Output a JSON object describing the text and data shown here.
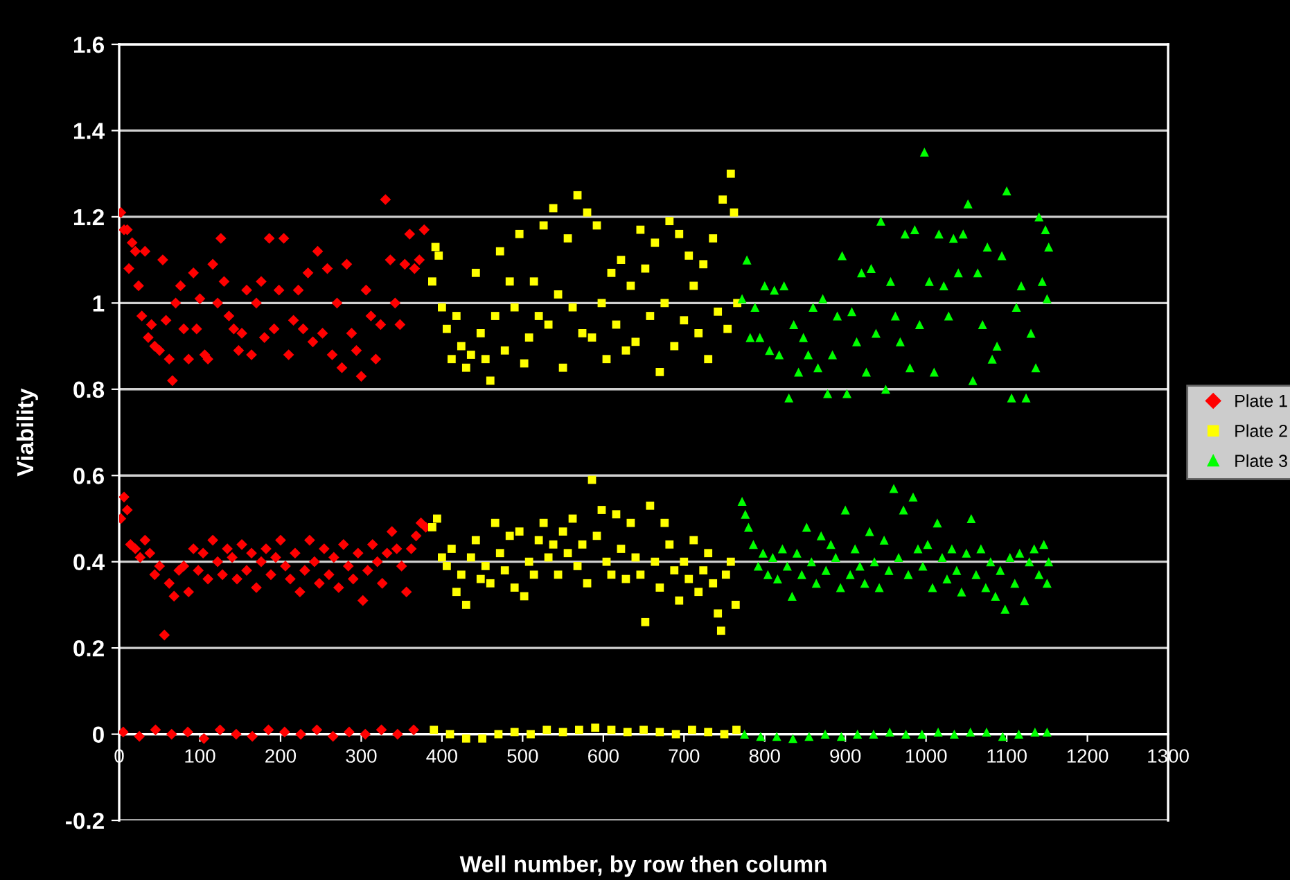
{
  "chart_data": {
    "type": "scatter",
    "xlabel": "Well number, by row then column",
    "ylabel": "Viability",
    "xlim": [
      0,
      1300
    ],
    "xticks": [
      0,
      100,
      200,
      300,
      400,
      500,
      600,
      700,
      800,
      900,
      1000,
      1100,
      1200,
      1300
    ],
    "ylim": [
      -0.2,
      1.6
    ],
    "yticks": [
      -0.2,
      0,
      0.2,
      0.4,
      0.6,
      0.8,
      1,
      1.2,
      1.4,
      1.6
    ],
    "grid": "y",
    "legend": "right",
    "series": [
      {
        "name": "Plate 1",
        "color": "#ff0000",
        "marker": "diamond",
        "x": [
          2,
          6,
          10,
          12,
          16,
          20,
          24,
          28,
          32,
          36,
          40,
          44,
          50,
          54,
          58,
          62,
          66,
          70,
          76,
          80,
          86,
          92,
          96,
          100,
          106,
          110,
          116,
          122,
          126,
          130,
          136,
          142,
          148,
          152,
          158,
          164,
          170,
          176,
          180,
          186,
          192,
          198,
          204,
          210,
          216,
          222,
          228,
          234,
          240,
          246,
          252,
          258,
          264,
          270,
          276,
          282,
          288,
          294,
          300,
          306,
          312,
          318,
          324,
          330,
          336,
          342,
          348,
          354,
          360,
          366,
          372,
          378,
          2,
          6,
          10,
          14,
          20,
          26,
          32,
          38,
          44,
          50,
          56,
          62,
          68,
          74,
          80,
          86,
          92,
          98,
          104,
          110,
          116,
          122,
          128,
          134,
          140,
          146,
          152,
          158,
          164,
          170,
          176,
          182,
          188,
          194,
          200,
          206,
          212,
          218,
          224,
          230,
          236,
          242,
          248,
          254,
          260,
          266,
          272,
          278,
          284,
          290,
          296,
          302,
          308,
          314,
          320,
          326,
          332,
          338,
          344,
          350,
          356,
          362,
          368,
          374,
          380,
          5,
          25,
          45,
          65,
          85,
          105,
          125,
          145,
          165,
          185,
          205,
          225,
          245,
          265,
          285,
          305,
          325,
          345,
          365
        ],
        "values": [
          1.21,
          1.17,
          1.17,
          1.08,
          1.14,
          1.12,
          1.04,
          0.97,
          1.12,
          0.92,
          0.95,
          0.9,
          0.89,
          1.1,
          0.96,
          0.87,
          0.82,
          1.0,
          1.04,
          0.94,
          0.87,
          1.07,
          0.94,
          1.01,
          0.88,
          0.87,
          1.09,
          1.0,
          1.15,
          1.05,
          0.97,
          0.94,
          0.89,
          0.93,
          1.03,
          0.88,
          1.0,
          1.05,
          0.92,
          1.15,
          0.94,
          1.03,
          1.15,
          0.88,
          0.96,
          1.03,
          0.94,
          1.07,
          0.91,
          1.12,
          0.93,
          1.08,
          0.88,
          1.0,
          0.85,
          1.09,
          0.93,
          0.89,
          0.83,
          1.03,
          0.97,
          0.87,
          0.95,
          1.24,
          1.1,
          1.0,
          0.95,
          1.09,
          1.16,
          1.08,
          1.1,
          1.17,
          0.5,
          0.55,
          0.52,
          0.44,
          0.43,
          0.41,
          0.45,
          0.42,
          0.37,
          0.39,
          0.23,
          0.35,
          0.32,
          0.38,
          0.39,
          0.33,
          0.43,
          0.38,
          0.42,
          0.36,
          0.45,
          0.4,
          0.37,
          0.43,
          0.41,
          0.36,
          0.44,
          0.38,
          0.42,
          0.34,
          0.4,
          0.43,
          0.37,
          0.41,
          0.45,
          0.39,
          0.36,
          0.42,
          0.33,
          0.38,
          0.45,
          0.4,
          0.35,
          0.43,
          0.37,
          0.41,
          0.34,
          0.44,
          0.39,
          0.36,
          0.42,
          0.31,
          0.38,
          0.44,
          0.4,
          0.35,
          0.42,
          0.47,
          0.43,
          0.39,
          0.33,
          0.43,
          0.46,
          0.49,
          0.48,
          0.005,
          -0.005,
          0.01,
          0,
          0.005,
          -0.01,
          0.01,
          0,
          -0.005,
          0.01,
          0.005,
          0,
          0.01,
          -0.005,
          0.005,
          0,
          0.01,
          0,
          0.01
        ]
      },
      {
        "name": "Plate 2",
        "color": "#ffff00",
        "marker": "square",
        "x": [
          388,
          392,
          396,
          400,
          406,
          412,
          418,
          424,
          430,
          436,
          442,
          448,
          454,
          460,
          466,
          472,
          478,
          484,
          490,
          496,
          502,
          508,
          514,
          520,
          526,
          532,
          538,
          544,
          550,
          556,
          562,
          568,
          574,
          580,
          586,
          592,
          598,
          604,
          610,
          616,
          622,
          628,
          634,
          640,
          646,
          652,
          658,
          664,
          670,
          676,
          682,
          688,
          694,
          700,
          706,
          712,
          718,
          724,
          730,
          736,
          742,
          748,
          754,
          758,
          762,
          766,
          388,
          394,
          400,
          406,
          412,
          418,
          424,
          430,
          436,
          442,
          448,
          454,
          460,
          466,
          472,
          478,
          484,
          490,
          496,
          502,
          508,
          514,
          520,
          526,
          532,
          538,
          544,
          550,
          556,
          562,
          568,
          574,
          580,
          586,
          592,
          598,
          604,
          610,
          616,
          622,
          628,
          634,
          640,
          646,
          652,
          658,
          664,
          670,
          676,
          682,
          688,
          694,
          700,
          706,
          712,
          718,
          724,
          730,
          736,
          742,
          746,
          752,
          758,
          764,
          390,
          410,
          430,
          450,
          470,
          490,
          510,
          530,
          550,
          570,
          590,
          610,
          630,
          650,
          670,
          690,
          710,
          730,
          750,
          765
        ],
        "values": [
          1.05,
          1.13,
          1.11,
          0.99,
          0.94,
          0.87,
          0.97,
          0.9,
          0.85,
          0.88,
          1.07,
          0.93,
          0.87,
          0.82,
          0.97,
          1.12,
          0.89,
          1.05,
          0.99,
          1.16,
          0.86,
          0.92,
          1.05,
          0.97,
          1.18,
          0.95,
          1.22,
          1.02,
          0.85,
          1.15,
          0.99,
          1.25,
          0.93,
          1.21,
          0.92,
          1.18,
          1.0,
          0.87,
          1.07,
          0.95,
          1.1,
          0.89,
          1.04,
          0.91,
          1.17,
          1.08,
          0.97,
          1.14,
          0.84,
          1.0,
          1.19,
          0.9,
          1.16,
          0.96,
          1.11,
          1.04,
          0.93,
          1.09,
          0.87,
          1.15,
          0.98,
          1.24,
          0.94,
          1.3,
          1.21,
          1.0,
          0.48,
          0.5,
          0.41,
          0.39,
          0.43,
          0.33,
          0.37,
          0.3,
          0.41,
          0.45,
          0.36,
          0.39,
          0.35,
          0.49,
          0.42,
          0.38,
          0.46,
          0.34,
          0.47,
          0.32,
          0.4,
          0.37,
          0.45,
          0.49,
          0.41,
          0.44,
          0.37,
          0.47,
          0.42,
          0.5,
          0.39,
          0.44,
          0.35,
          0.59,
          0.46,
          0.52,
          0.4,
          0.37,
          0.51,
          0.43,
          0.36,
          0.49,
          0.41,
          0.37,
          0.26,
          0.53,
          0.4,
          0.34,
          0.49,
          0.44,
          0.38,
          0.31,
          0.4,
          0.36,
          0.45,
          0.33,
          0.38,
          0.42,
          0.35,
          0.28,
          0.24,
          0.37,
          0.4,
          0.3,
          0.01,
          0,
          -0.01,
          -0.01,
          0,
          0.005,
          0,
          0.01,
          0.005,
          0.01,
          0.015,
          0.01,
          0.005,
          0.01,
          0.005,
          0,
          0.01,
          0.005,
          0,
          0.01
        ]
      },
      {
        "name": "Plate 3",
        "color": "#00ff00",
        "marker": "triangle",
        "x": [
          772,
          778,
          782,
          788,
          794,
          800,
          806,
          812,
          818,
          824,
          830,
          836,
          842,
          848,
          854,
          860,
          866,
          872,
          878,
          884,
          890,
          896,
          902,
          908,
          914,
          920,
          926,
          932,
          938,
          944,
          950,
          956,
          962,
          968,
          974,
          980,
          986,
          992,
          998,
          1004,
          1010,
          1016,
          1022,
          1028,
          1034,
          1040,
          1046,
          1052,
          1058,
          1064,
          1070,
          1076,
          1082,
          1088,
          1094,
          1100,
          1106,
          1112,
          1118,
          1124,
          1130,
          1136,
          1140,
          1144,
          1148,
          1150,
          1152,
          772,
          776,
          780,
          786,
          792,
          798,
          804,
          810,
          816,
          822,
          828,
          834,
          840,
          846,
          852,
          858,
          864,
          870,
          876,
          882,
          888,
          894,
          900,
          906,
          912,
          918,
          924,
          930,
          936,
          942,
          948,
          954,
          960,
          966,
          972,
          978,
          984,
          990,
          996,
          1002,
          1008,
          1014,
          1020,
          1026,
          1032,
          1038,
          1044,
          1050,
          1056,
          1062,
          1068,
          1074,
          1080,
          1086,
          1092,
          1098,
          1104,
          1110,
          1116,
          1122,
          1128,
          1134,
          1140,
          1146,
          1150,
          1152,
          775,
          795,
          815,
          835,
          855,
          875,
          895,
          915,
          935,
          955,
          975,
          995,
          1015,
          1035,
          1055,
          1075,
          1095,
          1115,
          1135,
          1150
        ],
        "values": [
          1.01,
          1.1,
          0.92,
          0.99,
          0.92,
          1.04,
          0.89,
          1.03,
          0.88,
          1.04,
          0.78,
          0.95,
          0.84,
          0.92,
          0.88,
          0.99,
          0.85,
          1.01,
          0.79,
          0.88,
          0.97,
          1.11,
          0.79,
          0.98,
          0.91,
          1.07,
          0.84,
          1.08,
          0.93,
          1.19,
          0.8,
          1.05,
          0.97,
          0.91,
          1.16,
          0.85,
          1.17,
          0.95,
          1.35,
          1.05,
          0.84,
          1.16,
          1.04,
          0.97,
          1.15,
          1.07,
          1.16,
          1.23,
          0.82,
          1.07,
          0.95,
          1.13,
          0.87,
          0.9,
          1.11,
          1.26,
          0.78,
          0.99,
          1.04,
          0.78,
          0.93,
          0.85,
          1.2,
          1.05,
          1.17,
          1.01,
          1.13,
          0.54,
          0.51,
          0.48,
          0.44,
          0.39,
          0.42,
          0.37,
          0.41,
          0.36,
          0.43,
          0.39,
          0.32,
          0.42,
          0.37,
          0.48,
          0.4,
          0.35,
          0.46,
          0.38,
          0.44,
          0.41,
          0.34,
          0.52,
          0.37,
          0.43,
          0.39,
          0.35,
          0.47,
          0.4,
          0.34,
          0.45,
          0.38,
          0.57,
          0.41,
          0.52,
          0.37,
          0.55,
          0.43,
          0.39,
          0.44,
          0.34,
          0.49,
          0.41,
          0.36,
          0.43,
          0.38,
          0.33,
          0.42,
          0.5,
          0.37,
          0.43,
          0.34,
          0.4,
          0.32,
          0.38,
          0.29,
          0.41,
          0.35,
          0.42,
          0.31,
          0.4,
          0.43,
          0.37,
          0.44,
          0.35,
          0.4,
          0,
          -0.005,
          -0.005,
          -0.01,
          -0.005,
          0,
          -0.005,
          0,
          0,
          0.005,
          0,
          0,
          0.005,
          0,
          0.005,
          0.005,
          -0.005,
          0,
          0.005,
          0.005
        ]
      }
    ]
  }
}
